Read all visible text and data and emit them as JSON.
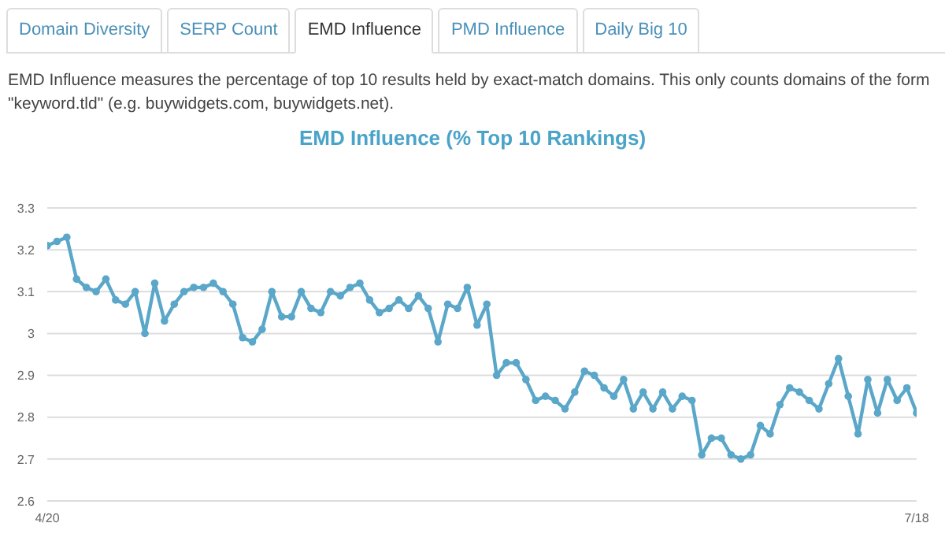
{
  "chart_data": {
    "type": "line",
    "title": "EMD Influence (% Top 10 Rankings)",
    "subtitle": "EMD Influence measures the percentage of top 10 results held by exact-match domains. This only counts domains of the form \"keyword.tld\" (e.g. buywidgets.com, buywidgets.net).",
    "annotations": [
      "Domain Diversity",
      "SERP Count",
      "EMD Influence",
      "PMD Influence",
      "Daily Big 10"
    ],
    "categories": [
      "4/20",
      null,
      null,
      null,
      null,
      null,
      null,
      null,
      null,
      null,
      null,
      null,
      null,
      null,
      null,
      null,
      null,
      null,
      null,
      null,
      null,
      null,
      null,
      null,
      null,
      null,
      null,
      null,
      null,
      null,
      null,
      null,
      null,
      null,
      null,
      null,
      null,
      null,
      null,
      null,
      null,
      null,
      null,
      null,
      null,
      null,
      null,
      null,
      null,
      null,
      null,
      null,
      null,
      null,
      null,
      null,
      null,
      null,
      null,
      null,
      null,
      null,
      null,
      null,
      null,
      null,
      null,
      null,
      null,
      null,
      null,
      null,
      null,
      null,
      null,
      null,
      null,
      null,
      null,
      null,
      null,
      null,
      null,
      null,
      null,
      null,
      null,
      null,
      null,
      "7/18"
    ],
    "series": [
      {
        "color": "#5aa7c9",
        "values": [
          3.21,
          3.22,
          3.23,
          3.13,
          3.11,
          3.1,
          3.13,
          3.08,
          3.07,
          3.1,
          3.0,
          3.12,
          3.03,
          3.07,
          3.1,
          3.11,
          3.11,
          3.12,
          3.1,
          3.07,
          2.99,
          2.98,
          3.01,
          3.1,
          3.04,
          3.04,
          3.1,
          3.06,
          3.05,
          3.1,
          3.09,
          3.11,
          3.12,
          3.08,
          3.05,
          3.06,
          3.08,
          3.06,
          3.09,
          3.06,
          2.98,
          3.07,
          3.06,
          3.11,
          3.02,
          3.07,
          2.9,
          2.93,
          2.93,
          2.89,
          2.84,
          2.85,
          2.84,
          2.82,
          2.86,
          2.91,
          2.9,
          2.87,
          2.85,
          2.89,
          2.82,
          2.86,
          2.82,
          2.86,
          2.82,
          2.85,
          2.84,
          2.71,
          2.75,
          2.75,
          2.71,
          2.7,
          2.71,
          2.78,
          2.76,
          2.83,
          2.87,
          2.86,
          2.84,
          2.82,
          2.88,
          2.94,
          2.85,
          2.76,
          2.89,
          2.81,
          2.89,
          2.84,
          2.87,
          2.81
        ]
      }
    ],
    "ylim": [
      2.6,
      3.3
    ],
    "yticks": [
      2.6,
      2.7,
      2.8,
      2.9,
      3,
      3.1,
      3.2,
      3.3
    ],
    "grid": "y",
    "marker": "circle",
    "line_style": "solid",
    "legend": false
  }
}
